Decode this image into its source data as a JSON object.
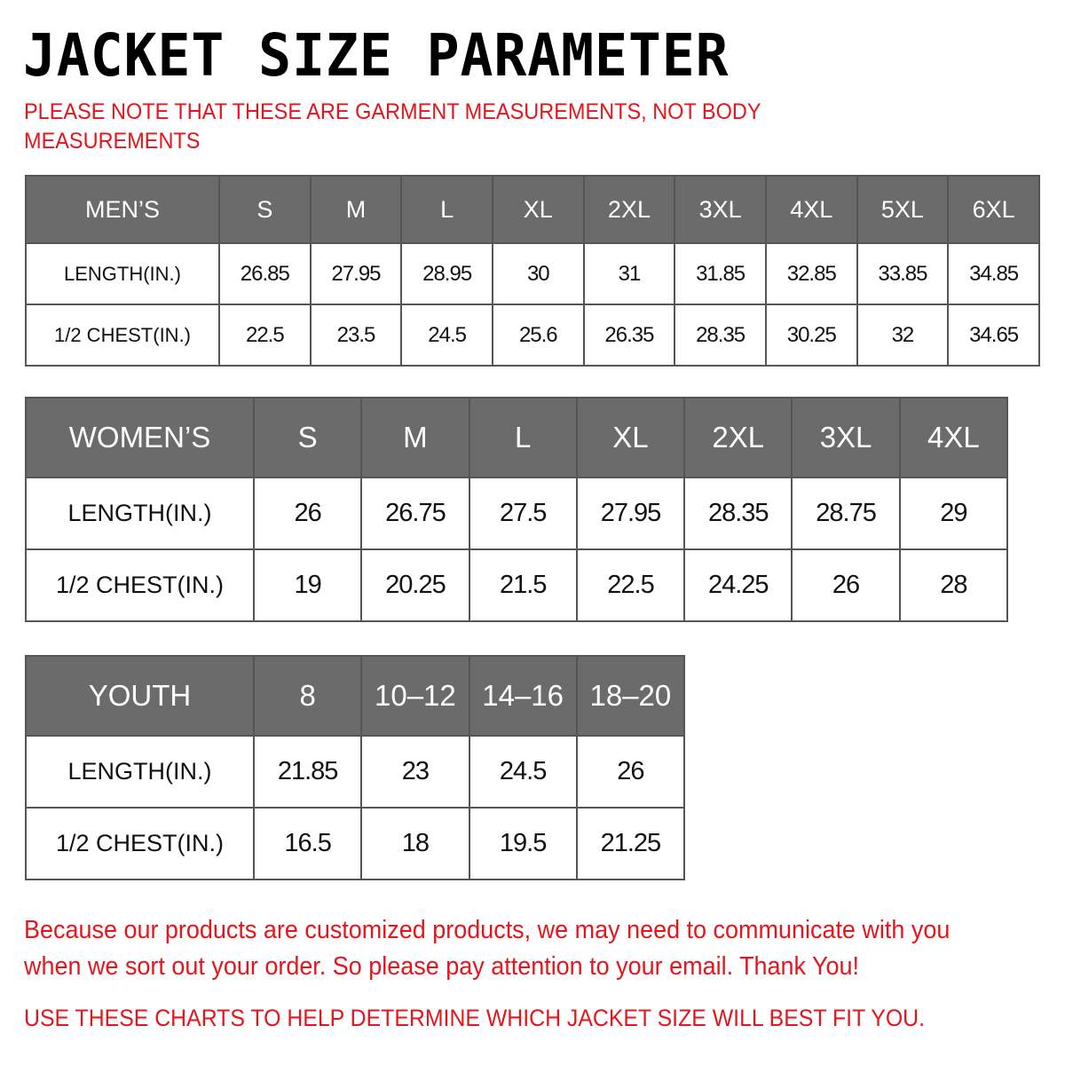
{
  "title": "JACKET SIZE PARAMETER",
  "subtitle": "PLEASE NOTE THAT THESE ARE GARMENT MEASUREMENTS, NOT BODY MEASUREMENTS",
  "colors": {
    "header_bg": "#6b6b6b",
    "accent_red": "#e8141b"
  },
  "tables": {
    "men": {
      "header": [
        "MEN’S",
        "S",
        "M",
        "L",
        "XL",
        "2XL",
        "3XL",
        "4XL",
        "5XL",
        "6XL"
      ],
      "rows": [
        [
          "LENGTH(IN.)",
          "26.85",
          "27.95",
          "28.95",
          "30",
          "31",
          "31.85",
          "32.85",
          "33.85",
          "34.85"
        ],
        [
          "1/2 CHEST(IN.)",
          "22.5",
          "23.5",
          "24.5",
          "25.6",
          "26.35",
          "28.35",
          "30.25",
          "32",
          "34.65"
        ]
      ]
    },
    "women": {
      "header": [
        "WOMEN’S",
        "S",
        "M",
        "L",
        "XL",
        "2XL",
        "3XL",
        "4XL"
      ],
      "rows": [
        [
          "LENGTH(IN.)",
          "26",
          "26.75",
          "27.5",
          "27.95",
          "28.35",
          "28.75",
          "29"
        ],
        [
          "1/2 CHEST(IN.)",
          "19",
          "20.25",
          "21.5",
          "22.5",
          "24.25",
          "26",
          "28"
        ]
      ]
    },
    "youth": {
      "header": [
        "YOUTH",
        "8",
        "10–12",
        "14–16",
        "18–20"
      ],
      "rows": [
        [
          "LENGTH(IN.)",
          "21.85",
          "23",
          "24.5",
          "26"
        ],
        [
          "1/2 CHEST(IN.)",
          "16.5",
          "18",
          "19.5",
          "21.25"
        ]
      ]
    }
  },
  "note": "Because our products are customized products, we may need to communicate with you when we sort out your order. So please pay attention to your email. Thank You!",
  "footer": "USE THESE CHARTS TO HELP DETERMINE WHICH JACKET SIZE WILL BEST FIT YOU."
}
